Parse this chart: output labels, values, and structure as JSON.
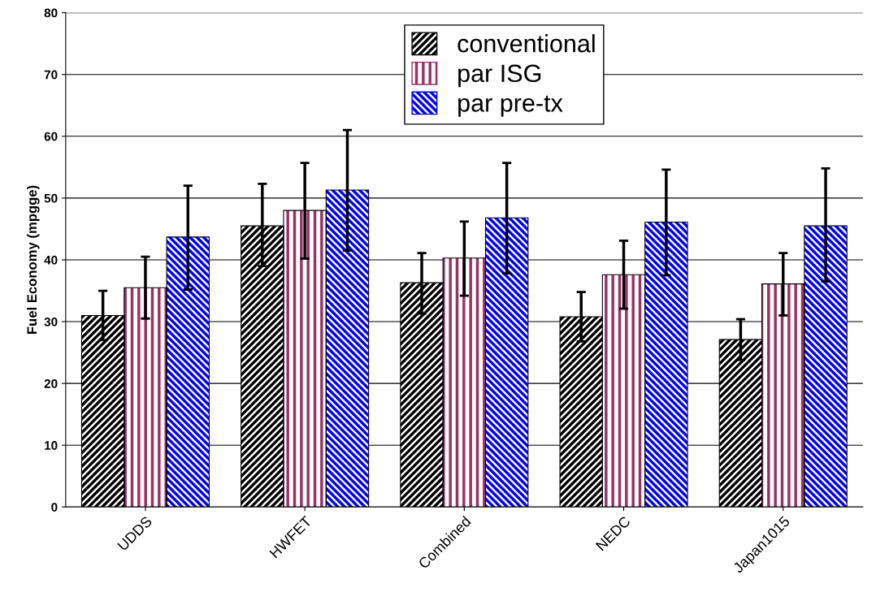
{
  "chart_data": {
    "type": "bar",
    "ylabel": "Fuel Economy (mpgge)",
    "categories": [
      "UDDS",
      "HWFET",
      "Combined",
      "NEDC",
      "Japan1015"
    ],
    "series": [
      {
        "name": "conventional",
        "color": "#000000",
        "values": [
          31,
          45.5,
          36.3,
          30.8,
          27.1
        ],
        "errors": [
          [
            27,
            35
          ],
          [
            39,
            52.3
          ],
          [
            31.3,
            41.1
          ],
          [
            26.8,
            34.8
          ],
          [
            23.8,
            30.4
          ]
        ]
      },
      {
        "name": "par ISG",
        "color": "#993366",
        "values": [
          35.5,
          48,
          40.3,
          37.6,
          36.1
        ],
        "errors": [
          [
            30.5,
            40.5
          ],
          [
            40.2,
            55.7
          ],
          [
            34.2,
            46.2
          ],
          [
            32.1,
            43.1
          ],
          [
            31,
            41.1
          ]
        ]
      },
      {
        "name": "par pre-tx",
        "color": "#0000ff",
        "values": [
          43.7,
          51.3,
          46.8,
          46.1,
          45.5
        ],
        "errors": [
          [
            35.2,
            52
          ],
          [
            41.5,
            61
          ],
          [
            37.8,
            55.7
          ],
          [
            37.5,
            54.6
          ],
          [
            36.5,
            54.8
          ]
        ]
      }
    ],
    "ylim": [
      0,
      80
    ],
    "yticks": [
      0,
      10,
      20,
      30,
      40,
      50,
      60,
      70,
      80
    ],
    "grid": "y",
    "legend": "top"
  }
}
